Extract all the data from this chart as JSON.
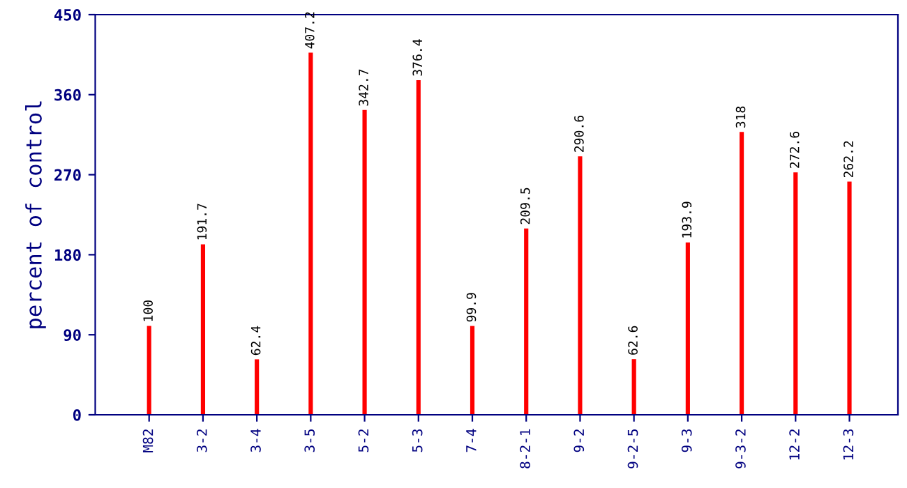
{
  "chart_data": {
    "type": "bar",
    "ylabel": "percent of control",
    "categories": [
      "M82",
      "3-2",
      "3-4",
      "3-5",
      "5-2",
      "5-3",
      "7-4",
      "8-2-1",
      "9-2",
      "9-2-5",
      "9-3",
      "9-3-2",
      "12-2",
      "12-3"
    ],
    "values": [
      100,
      191.7,
      62.4,
      407.2,
      342.7,
      376.4,
      99.9,
      209.5,
      290.6,
      62.6,
      193.9,
      318,
      272.6,
      262.2
    ],
    "color": "#ff0000",
    "ylim": [
      0,
      450
    ],
    "yticks": [
      0,
      90,
      180,
      270,
      360,
      450
    ],
    "grid": false,
    "data_labels": true
  }
}
